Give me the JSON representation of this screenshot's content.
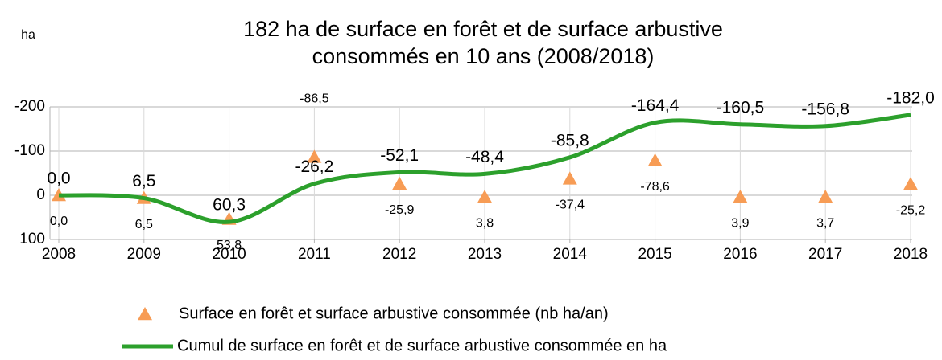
{
  "chart_data": {
    "type": "combo",
    "title": [
      "182 ha de surface en forêt et de surface arbustive",
      "consommés en 10 ans (2008/2018)"
    ],
    "y_axis_label": "ha",
    "categories": [
      "2008",
      "2009",
      "2010",
      "2011",
      "2012",
      "2013",
      "2014",
      "2015",
      "2016",
      "2017",
      "2018"
    ],
    "ylim": [
      100,
      -200
    ],
    "yticks": [
      -200,
      -100,
      0,
      100
    ],
    "negative_tick_color": "#ff0000",
    "grid": true,
    "series": [
      {
        "name": "Surface en forêt et surface arbustive consommée (nb ha/an)",
        "type": "scatter",
        "marker": "triangle",
        "color": "#f79c55",
        "values": [
          0.0,
          6.5,
          53.8,
          -86.5,
          -25.9,
          3.8,
          -37.4,
          -78.6,
          3.9,
          3.7,
          -25.2
        ],
        "value_labels": [
          "0,0",
          "6,5",
          "53,8",
          "-86,5",
          "-25,9",
          "3,8",
          "-37,4",
          "-78,6",
          "3,9",
          "3,7",
          "-25,2"
        ]
      },
      {
        "name": "Cumul de surface en forêt et de surface arbustive consommée en ha",
        "type": "line",
        "smooth": true,
        "color": "#2ca02c",
        "values": [
          0.0,
          6.5,
          60.3,
          -26.2,
          -52.1,
          -48.4,
          -85.8,
          -164.4,
          -160.5,
          -156.8,
          -182.0
        ],
        "value_labels": [
          "0,0",
          "6,5",
          "60,3",
          "-26,2",
          "-52,1",
          "-48,4",
          "-85,8",
          "-164,4",
          "-160,5",
          "-156,8",
          "-182,0"
        ]
      }
    ]
  }
}
